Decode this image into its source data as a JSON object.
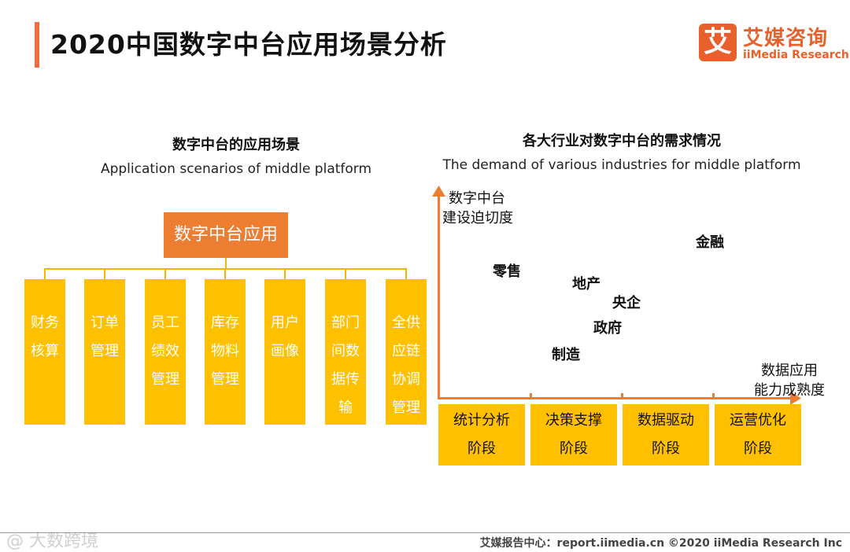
{
  "header": {
    "title": "2020中国数字中台应用场景分析",
    "logo_mark": "艾",
    "logo_cn": "艾媒咨询",
    "logo_en": "iiMedia Research"
  },
  "left": {
    "title_cn": "数字中台的应用场景",
    "title_en": "Application scenarios of middle platform",
    "root": "数字中台应用",
    "leaves": [
      "财务核算",
      "订单管理",
      "员工绩效管理",
      "库存物料管理",
      "用户画像",
      "部门间数据传输",
      "全供应链协调管理"
    ]
  },
  "right": {
    "title_cn": "各大行业对数字中台的需求情况",
    "title_en": "The demand of various industries for middle platform",
    "y_axis_label_1": "数字中台",
    "y_axis_label_2": "建设迫切度",
    "x_axis_label_1": "数据应用",
    "x_axis_label_2": "能力成熟度",
    "industries": [
      "零售",
      "地产",
      "央企",
      "政府",
      "制造",
      "金融"
    ],
    "stages": [
      "统计分析阶段",
      "决策支撑阶段",
      "数据驱动阶段",
      "运营优化阶段"
    ]
  },
  "footer": {
    "text": "艾媒报告中心：report.iimedia.cn  ©2020  iiMedia Research  Inc",
    "watermark": "@ 大数跨境"
  },
  "colors": {
    "accent": "#ed7d31",
    "box": "#ffc000",
    "brand": "#e8612c"
  }
}
